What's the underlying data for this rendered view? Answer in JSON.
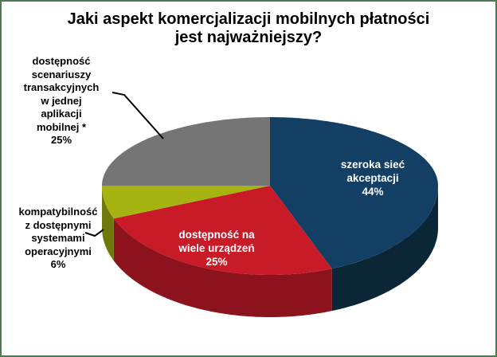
{
  "frame": {
    "border_color": "#4d7a55",
    "background": "#ffffff"
  },
  "chart_data": {
    "type": "pie",
    "style": "3d-exploded-none",
    "title": "Jaki aspekt komercjalizacji mobilnych płatności jest najważniejszy?",
    "legend_position": "none",
    "start_angle_deg": 0,
    "direction": "clockwise",
    "segments": [
      {
        "id": "szeroka-siec-akceptacji",
        "label": "szeroka sieć akceptacji",
        "value": 44,
        "unit": "%",
        "color": "#123f63",
        "side_color": "#0b2637",
        "label_placement": "inside",
        "label_color": "#ffffff",
        "label_text": "szeroka sieć\nakceptacji\n44%"
      },
      {
        "id": "dostepnosc-na-wiele-urzadzen",
        "label": "dostępność na wiele urządzeń",
        "value": 25,
        "unit": "%",
        "color": "#c91a27",
        "side_color": "#8c121d",
        "label_placement": "inside",
        "label_color": "#ffffff",
        "label_text": "dostępność na\nwiele urządzeń\n25%"
      },
      {
        "id": "kompatybilnosc-z-systemami-operacyjnymi",
        "label": "kompatybilność z dostępnymi systemami operacyjnymi",
        "value": 6,
        "unit": "%",
        "color": "#a6b411",
        "side_color": "#6e780b",
        "label_placement": "outside-callout",
        "label_color": "#000000",
        "label_text": "kompatybilność\nz dostępnymi\nsystemami\noperacyjnymi\n6%"
      },
      {
        "id": "dostepnosc-scenariuszy-transakcyjnych",
        "label": "dostępność scenariuszy transakcyjnych w jednej aplikacji mobilnej *",
        "value": 25,
        "unit": "%",
        "color": "#757575",
        "label_placement": "outside-callout",
        "label_color": "#000000",
        "label_text": "dostępność\nscenariuszy\ntransakcyjnych\nw jednej\naplikacji\nmobilnej *\n25%"
      }
    ],
    "callout_line_color": "#000000"
  }
}
